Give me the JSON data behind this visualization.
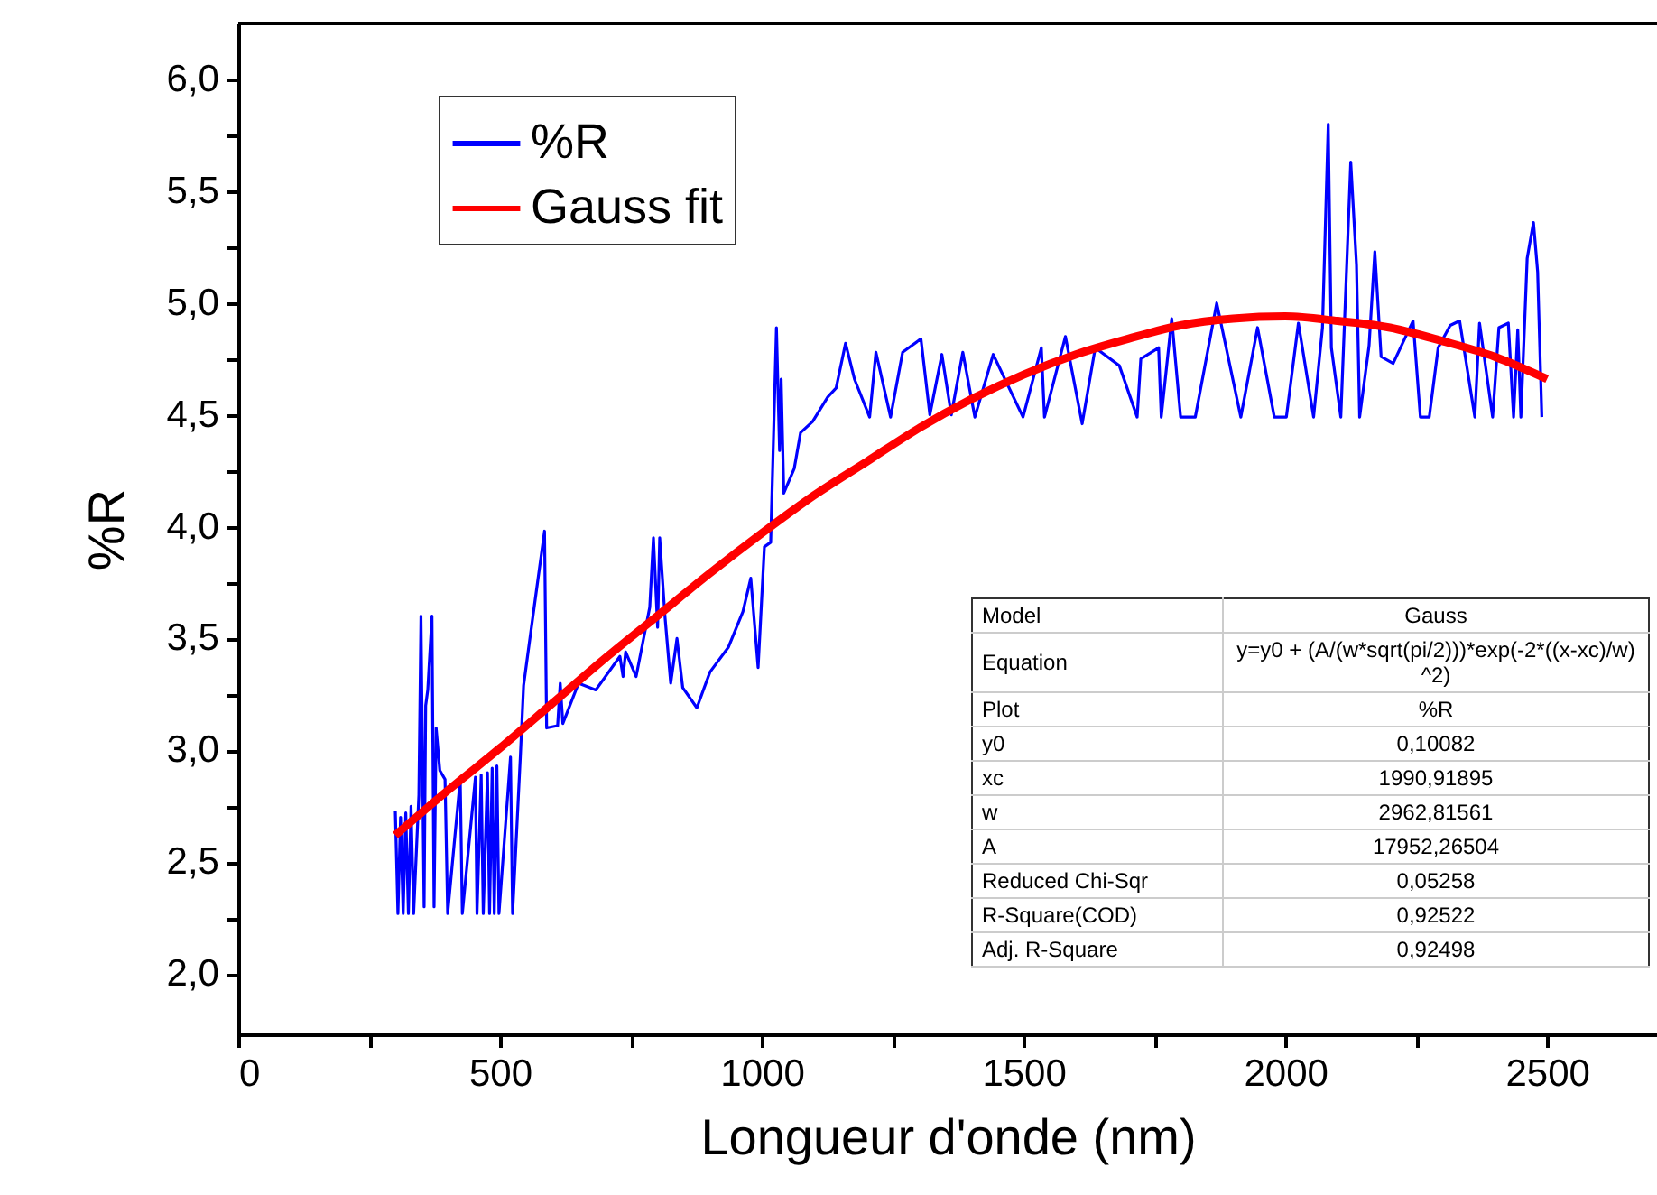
{
  "chart_data": {
    "type": "line",
    "xlabel": "Longueur d'onde (nm)",
    "ylabel": "%R",
    "xlim": [
      0,
      2710
    ],
    "ylim": [
      1.73,
      6.25
    ],
    "xticks": [
      0,
      {
        "value": 250,
        "label": null
      },
      500,
      {
        "value": 750,
        "label": null
      },
      1000,
      {
        "value": 1250,
        "label": null
      },
      1500,
      {
        "value": 1750,
        "label": null
      },
      2000,
      {
        "value": 2250,
        "label": null
      },
      2500
    ],
    "yticks": [
      {
        "value": 2,
        "label": "2,0"
      },
      {
        "value": 2.25,
        "label": null
      },
      {
        "value": 2.5,
        "label": "2,5"
      },
      {
        "value": 2.75,
        "label": null
      },
      {
        "value": 3,
        "label": "3,0"
      },
      {
        "value": 3.25,
        "label": null
      },
      {
        "value": 3.5,
        "label": "3,5"
      },
      {
        "value": 3.75,
        "label": null
      },
      {
        "value": 4,
        "label": "4,0"
      },
      {
        "value": 4.25,
        "label": null
      },
      {
        "value": 4.5,
        "label": "4,5"
      },
      {
        "value": 4.75,
        "label": null
      },
      {
        "value": 5,
        "label": "5,0"
      },
      {
        "value": 5.25,
        "label": null
      },
      {
        "value": 5.5,
        "label": "5,5"
      },
      {
        "value": 5.75,
        "label": null
      },
      {
        "value": 6,
        "label": "6,0"
      }
    ],
    "grid": false,
    "legend": "top left",
    "marker": "none",
    "line_style": "solid",
    "series": [
      {
        "name": "%R",
        "color": "#0000ff",
        "x": [
          300,
          305,
          310,
          315,
          320,
          325,
          330,
          335,
          345,
          349,
          355,
          358,
          362,
          370,
          374,
          378,
          385,
          395,
          400,
          424,
          428,
          453,
          456,
          464,
          468,
          476,
          480,
          485,
          489,
          494,
          498,
          520,
          524,
          539,
          545,
          560,
          585,
          589,
          610,
          615,
          620,
          650,
          683,
          729,
          735,
          740,
          760,
          786,
          793,
          801,
          805,
          815,
          826,
          838,
          849,
          876,
          901,
          936,
          964,
          979,
          993,
          1005,
          1017,
          1028,
          1034,
          1037,
          1042,
          1062,
          1074,
          1097,
          1126,
          1142,
          1160,
          1177,
          1206,
          1218,
          1246,
          1269,
          1304,
          1321,
          1344,
          1362,
          1384,
          1407,
          1442,
          1499,
          1534,
          1540,
          1580,
          1612,
          1637,
          1683,
          1717,
          1724,
          1758,
          1763,
          1783,
          1800,
          1828,
          1869,
          1915,
          1947,
          1979,
          2002,
          2025,
          2054,
          2071,
          2082,
          2088,
          2106,
          2125,
          2136,
          2142,
          2160,
          2171,
          2183,
          2206,
          2244,
          2258,
          2275,
          2292,
          2315,
          2333,
          2362,
          2371,
          2396,
          2408,
          2426,
          2436,
          2444,
          2450,
          2462,
          2474,
          2482,
          2490
        ],
        "values": [
          2.73,
          2.27,
          2.7,
          2.27,
          2.72,
          2.27,
          2.75,
          2.27,
          2.8,
          3.6,
          2.3,
          3.2,
          3.27,
          3.6,
          2.3,
          3.1,
          2.91,
          2.87,
          2.27,
          2.87,
          2.27,
          2.88,
          2.27,
          2.89,
          2.27,
          2.9,
          2.27,
          2.92,
          2.27,
          2.93,
          2.27,
          2.97,
          2.27,
          2.98,
          3.29,
          3.55,
          3.98,
          3.1,
          3.11,
          3.3,
          3.12,
          3.3,
          3.27,
          3.42,
          3.33,
          3.44,
          3.33,
          3.64,
          3.95,
          3.55,
          3.95,
          3.6,
          3.3,
          3.5,
          3.28,
          3.19,
          3.35,
          3.46,
          3.62,
          3.77,
          3.37,
          3.91,
          3.93,
          4.89,
          4.34,
          4.66,
          4.15,
          4.26,
          4.42,
          4.47,
          4.58,
          4.62,
          4.82,
          4.66,
          4.49,
          4.78,
          4.49,
          4.78,
          4.84,
          4.5,
          4.77,
          4.5,
          4.78,
          4.49,
          4.77,
          4.49,
          4.8,
          4.49,
          4.85,
          4.46,
          4.8,
          4.72,
          4.49,
          4.75,
          4.8,
          4.49,
          4.93,
          4.49,
          4.49,
          5.0,
          4.49,
          4.89,
          4.49,
          4.49,
          4.91,
          4.49,
          4.89,
          5.8,
          4.8,
          4.49,
          5.63,
          5.17,
          4.49,
          4.81,
          5.23,
          4.76,
          4.73,
          4.92,
          4.49,
          4.49,
          4.8,
          4.9,
          4.92,
          4.49,
          4.91,
          4.49,
          4.89,
          4.91,
          4.49,
          4.88,
          4.49,
          5.2,
          5.36,
          5.14,
          4.49
        ]
      },
      {
        "name": "Gauss fit",
        "color": "#ff0000",
        "x": [
          300,
          400,
          500,
          600,
          700,
          800,
          900,
          1000,
          1100,
          1200,
          1300,
          1400,
          1500,
          1600,
          1700,
          1800,
          1900,
          2000,
          2100,
          2200,
          2300,
          2400,
          2500
        ],
        "values": [
          2.62,
          2.82,
          3.01,
          3.21,
          3.41,
          3.6,
          3.79,
          3.97,
          4.14,
          4.29,
          4.44,
          4.57,
          4.68,
          4.77,
          4.84,
          4.9,
          4.93,
          4.94,
          4.92,
          4.89,
          4.83,
          4.76,
          4.66
        ]
      }
    ],
    "annotations": [
      "Model",
      "Gauss",
      "Equation",
      "y=y0 + (A/(w*sqrt(pi/2)))*exp(-2*((x-xc)/w)^2)",
      "Plot",
      "%R",
      "y0",
      "0,10082",
      "xc",
      "1990,91895",
      "w",
      "2962,81561",
      "A",
      "17952,26504",
      "Reduced Chi-Sqr",
      "0,05258",
      "R-Square(COD)",
      "0,92522",
      "Adj. R-Square",
      "0,92498"
    ]
  }
}
